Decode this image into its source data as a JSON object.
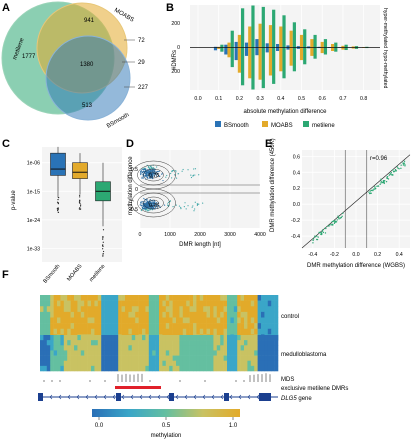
{
  "figure": {
    "panels": {
      "A": {
        "letter": "A",
        "labels": {
          "metilene": "metilene",
          "moabs": "MOABS",
          "bsmooth": "BSmooth"
        },
        "counts": {
          "metilene_only": "1777",
          "moabs_only": "941",
          "all_three": "1380",
          "metilene_bsmooth": "513",
          "moabs_outside": "72",
          "moabs_bsmooth": "29",
          "bsmooth_only": "227"
        }
      },
      "B": {
        "letter": "B"
      },
      "C": {
        "letter": "C"
      },
      "D": {
        "letter": "D"
      },
      "E": {
        "letter": "E"
      },
      "F": {
        "letter": "F",
        "track_labels": {
          "control": "control",
          "medulloblastoma": "medulloblastoma",
          "mds": "MDS",
          "exclusive": "exclusive metilene DMRs",
          "gene": "DLG5",
          "gene_suffix": " gene"
        },
        "colorbar": {
          "ticks": [
            "0.0",
            "0.5",
            "1.0"
          ],
          "label": "methylation"
        }
      }
    },
    "colors": {
      "bsmooth": "#2a73b6",
      "moabs": "#e3aa2b",
      "metilene": "#2ca873",
      "control_track": "#d6b25a",
      "exclusive_bar": "#e0202a",
      "gene": "#1b3f8f"
    }
  },
  "chart_data": [
    {
      "panel": "B",
      "type": "bar",
      "xlabel": "absolute methylation difference",
      "ylabel": "#DMRs",
      "ylim": [
        -300,
        300
      ],
      "yticks": [
        "200",
        "0",
        "200"
      ],
      "categories": [
        "0.0",
        "0.1",
        "0.2",
        "0.3",
        "0.4",
        "0.5",
        "0.6",
        "0.7",
        "0.8"
      ],
      "side_labels": {
        "top": "hyper-methylated",
        "bottom": "hypo-methylated"
      },
      "legend": [
        "BSmooth",
        "MOABS",
        "metilene"
      ],
      "x": [
        0.1,
        0.15,
        0.2,
        0.25,
        0.3,
        0.35,
        0.4,
        0.45,
        0.5,
        0.55,
        0.6,
        0.65,
        0.7,
        0.75,
        0.8
      ],
      "series": [
        {
          "name": "BSmooth",
          "values_up": [
            5,
            20,
            40,
            35,
            60,
            30,
            25,
            15,
            10,
            8,
            5,
            3,
            2,
            1,
            1
          ],
          "values_down": [
            20,
            50,
            90,
            60,
            55,
            35,
            25,
            15,
            10,
            6,
            4,
            3,
            2,
            1,
            0
          ]
        },
        {
          "name": "MOABS",
          "values_up": [
            5,
            35,
            90,
            150,
            170,
            160,
            150,
            120,
            90,
            60,
            40,
            25,
            12,
            8,
            3
          ],
          "values_down": [
            10,
            70,
            180,
            220,
            230,
            200,
            170,
            130,
            90,
            60,
            40,
            25,
            15,
            8,
            3
          ]
        },
        {
          "name": "metilene",
          "values_up": [
            20,
            120,
            280,
            300,
            290,
            270,
            230,
            180,
            130,
            90,
            60,
            35,
            20,
            10,
            5
          ],
          "values_down": [
            30,
            140,
            270,
            300,
            290,
            260,
            220,
            170,
            120,
            80,
            50,
            30,
            18,
            10,
            4
          ]
        }
      ]
    },
    {
      "panel": "C",
      "type": "box",
      "ylabel": "p-value",
      "yticks": [
        "1e-06",
        "1e-15",
        "1e-24",
        "1e-33"
      ],
      "categories": [
        "BSmooth",
        "MOABS",
        "metilene"
      ],
      "boxes": [
        {
          "name": "BSmooth",
          "q1_exp": -10,
          "median_exp": -8,
          "q3_exp": -3,
          "wmin_exp": -17,
          "wmax_exp": -1
        },
        {
          "name": "MOABS",
          "q1_exp": -11,
          "median_exp": -9,
          "q3_exp": -6,
          "wmin_exp": -16,
          "wmax_exp": -3
        },
        {
          "name": "metilene",
          "q1_exp": -18,
          "median_exp": -15,
          "q3_exp": -12,
          "wmin_exp": -26,
          "wmax_exp": -6
        }
      ]
    },
    {
      "panel": "D",
      "type": "scatter",
      "xlabel": "DMR length [nt]",
      "ylabel": "methylation difference",
      "xticks": [
        "0",
        "1000",
        "2000",
        "3000",
        "4000"
      ],
      "yticks": [
        "0.5",
        "0",
        "-0.5"
      ],
      "xlim": [
        0,
        4000
      ],
      "ylim": [
        -0.95,
        0.95
      ],
      "contour_labels": [
        "0.75",
        "0.75"
      ]
    },
    {
      "panel": "E",
      "type": "scatter",
      "xlabel": "DMR methylation difference (WGBS)",
      "ylabel": "DMR methylation difference (450K)",
      "xticks": [
        "-0.4",
        "-0.2",
        "0.0",
        "0.2",
        "0.4"
      ],
      "yticks": [
        "0.6",
        "0.4",
        "0.2",
        "0.0",
        "-0.2",
        "-0.4"
      ],
      "xlim": [
        -0.5,
        0.5
      ],
      "ylim": [
        -0.55,
        0.68
      ],
      "annotation": "r=0.96"
    }
  ]
}
